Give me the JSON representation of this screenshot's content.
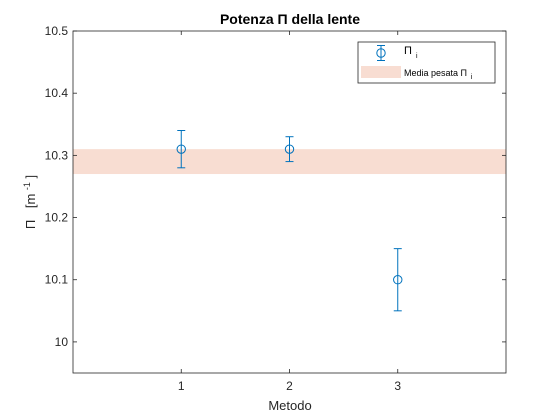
{
  "chart_data": {
    "type": "scatter",
    "title": "Potenza Π della lente",
    "xlabel": "Metodo",
    "ylabel_symbol": "Π",
    "ylabel_unit": "[m",
    "ylabel_exp": "-1",
    "ylabel_close": "]",
    "xlim": [
      0,
      4
    ],
    "ylim": [
      9.95,
      10.5
    ],
    "xticks": [
      1,
      2,
      3
    ],
    "xtick_labels": [
      "1",
      "2",
      "3"
    ],
    "yticks": [
      10.0,
      10.1,
      10.2,
      10.3,
      10.4,
      10.5
    ],
    "ytick_labels": [
      "10",
      "10.1",
      "10.2",
      "10.3",
      "10.4",
      "10.5"
    ],
    "grid": false,
    "legend_position": "top-right",
    "series": [
      {
        "kind": "errorbar",
        "legend_symbol": "Π",
        "legend_subscript": "i",
        "color": "#0072bd",
        "points": [
          {
            "x": 1,
            "y": 10.31,
            "err": 0.03
          },
          {
            "x": 2,
            "y": 10.31,
            "err": 0.02
          },
          {
            "x": 3,
            "y": 10.1,
            "err": 0.05
          }
        ]
      },
      {
        "kind": "band",
        "legend_text": "Media pesata Π",
        "legend_subscript": "i",
        "color": "#f8ddd2",
        "y_min": 10.27,
        "y_max": 10.31
      }
    ]
  }
}
